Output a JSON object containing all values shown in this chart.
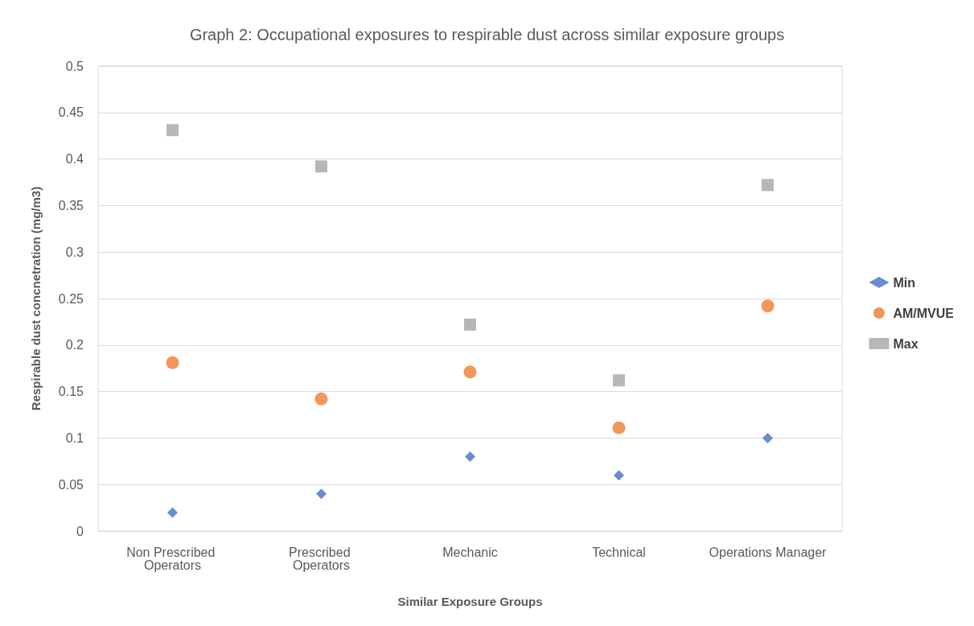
{
  "chart_data": {
    "type": "scatter",
    "title": "Graph 2: Occupational exposures to respirable dust across similar exposure groups",
    "xlabel": "Similar Exposure Groups",
    "ylabel": "Respirable dust concnetration (mg/m3)",
    "categories": [
      "Non Prescribed Operators",
      "Prescribed Operators",
      "Mechanic",
      "Technical",
      "Operations Manager"
    ],
    "series": [
      {
        "name": "Min",
        "color": "#4472c4",
        "marker": "diamond",
        "values": [
          0.02,
          0.04,
          0.08,
          0.06,
          0.1
        ]
      },
      {
        "name": "AM/MVUE",
        "color": "#ed7d31",
        "marker": "circle",
        "values": [
          0.181,
          0.142,
          0.171,
          0.111,
          0.242
        ]
      },
      {
        "name": "Max",
        "color": "#a5a5a5",
        "marker": "square",
        "values": [
          0.431,
          0.392,
          0.222,
          0.162,
          0.372
        ]
      }
    ],
    "ylim": [
      0,
      0.5
    ],
    "yticks": [
      0,
      0.05,
      0.1,
      0.15,
      0.2,
      0.25,
      0.3,
      0.35,
      0.4,
      0.45,
      0.5
    ],
    "grid": "y",
    "legend": "right"
  }
}
